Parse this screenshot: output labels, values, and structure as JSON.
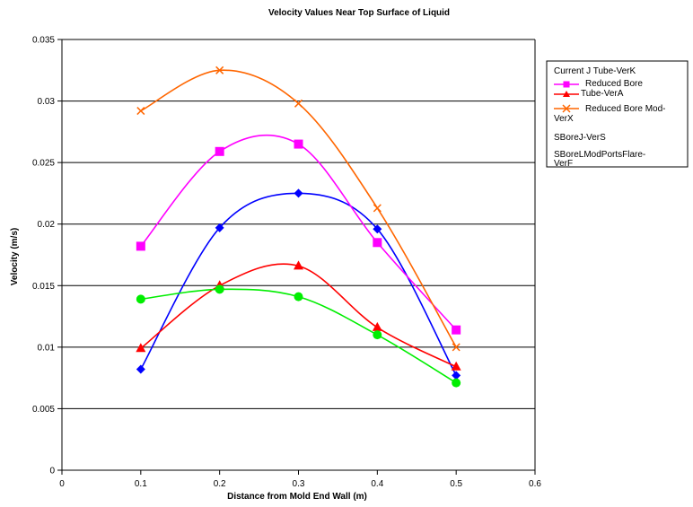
{
  "chart_data": {
    "type": "line",
    "title": "Velocity Values Near Top Surface of Liquid",
    "xlabel": "Distance from Mold End Wall (m)",
    "ylabel": "Velocity (m/s)",
    "xlim": [
      0,
      0.6
    ],
    "ylim": [
      0,
      0.035
    ],
    "x_ticks": [
      "0",
      "0.1",
      "0.2",
      "0.3",
      "0.4",
      "0.5",
      "0.6"
    ],
    "y_ticks": [
      "0",
      "0.005",
      "0.01",
      "0.015",
      "0.02",
      "0.025",
      "0.03",
      "0.035"
    ],
    "grid": "horizontal",
    "legend_position": "right",
    "series": [
      {
        "name": "Current J Tube-VerK",
        "color": "#0000ff",
        "marker": "diamond",
        "x": [
          0.1,
          0.2,
          0.3,
          0.4,
          0.5
        ],
        "values": [
          0.0082,
          0.0197,
          0.0225,
          0.0196,
          0.0077
        ]
      },
      {
        "name": "Reduced Bore Tube-VerA",
        "color": "#ff00ff",
        "marker": "square",
        "x": [
          0.1,
          0.2,
          0.3,
          0.4,
          0.5
        ],
        "values": [
          0.0182,
          0.0259,
          0.0265,
          0.0185,
          0.0114
        ]
      },
      {
        "name": "Reduced Bore Mod-VerX",
        "color": "#ff0000",
        "marker": "triangle",
        "x": [
          0.1,
          0.2,
          0.3,
          0.4,
          0.5
        ],
        "values": [
          0.0099,
          0.015,
          0.0166,
          0.0116,
          0.0084
        ]
      },
      {
        "name": "SBoreJ-VerS",
        "color": "#ff6600",
        "marker": "x",
        "x": [
          0.1,
          0.2,
          0.3,
          0.4,
          0.5
        ],
        "values": [
          0.0292,
          0.0325,
          0.0298,
          0.0213,
          0.01
        ]
      },
      {
        "name": "SBoreLModPortsFlare-VerF",
        "color": "#00ee00",
        "marker": "circle",
        "x": [
          0.1,
          0.2,
          0.3,
          0.4,
          0.5
        ],
        "values": [
          0.0139,
          0.0147,
          0.0141,
          0.011,
          0.0071
        ]
      }
    ]
  }
}
